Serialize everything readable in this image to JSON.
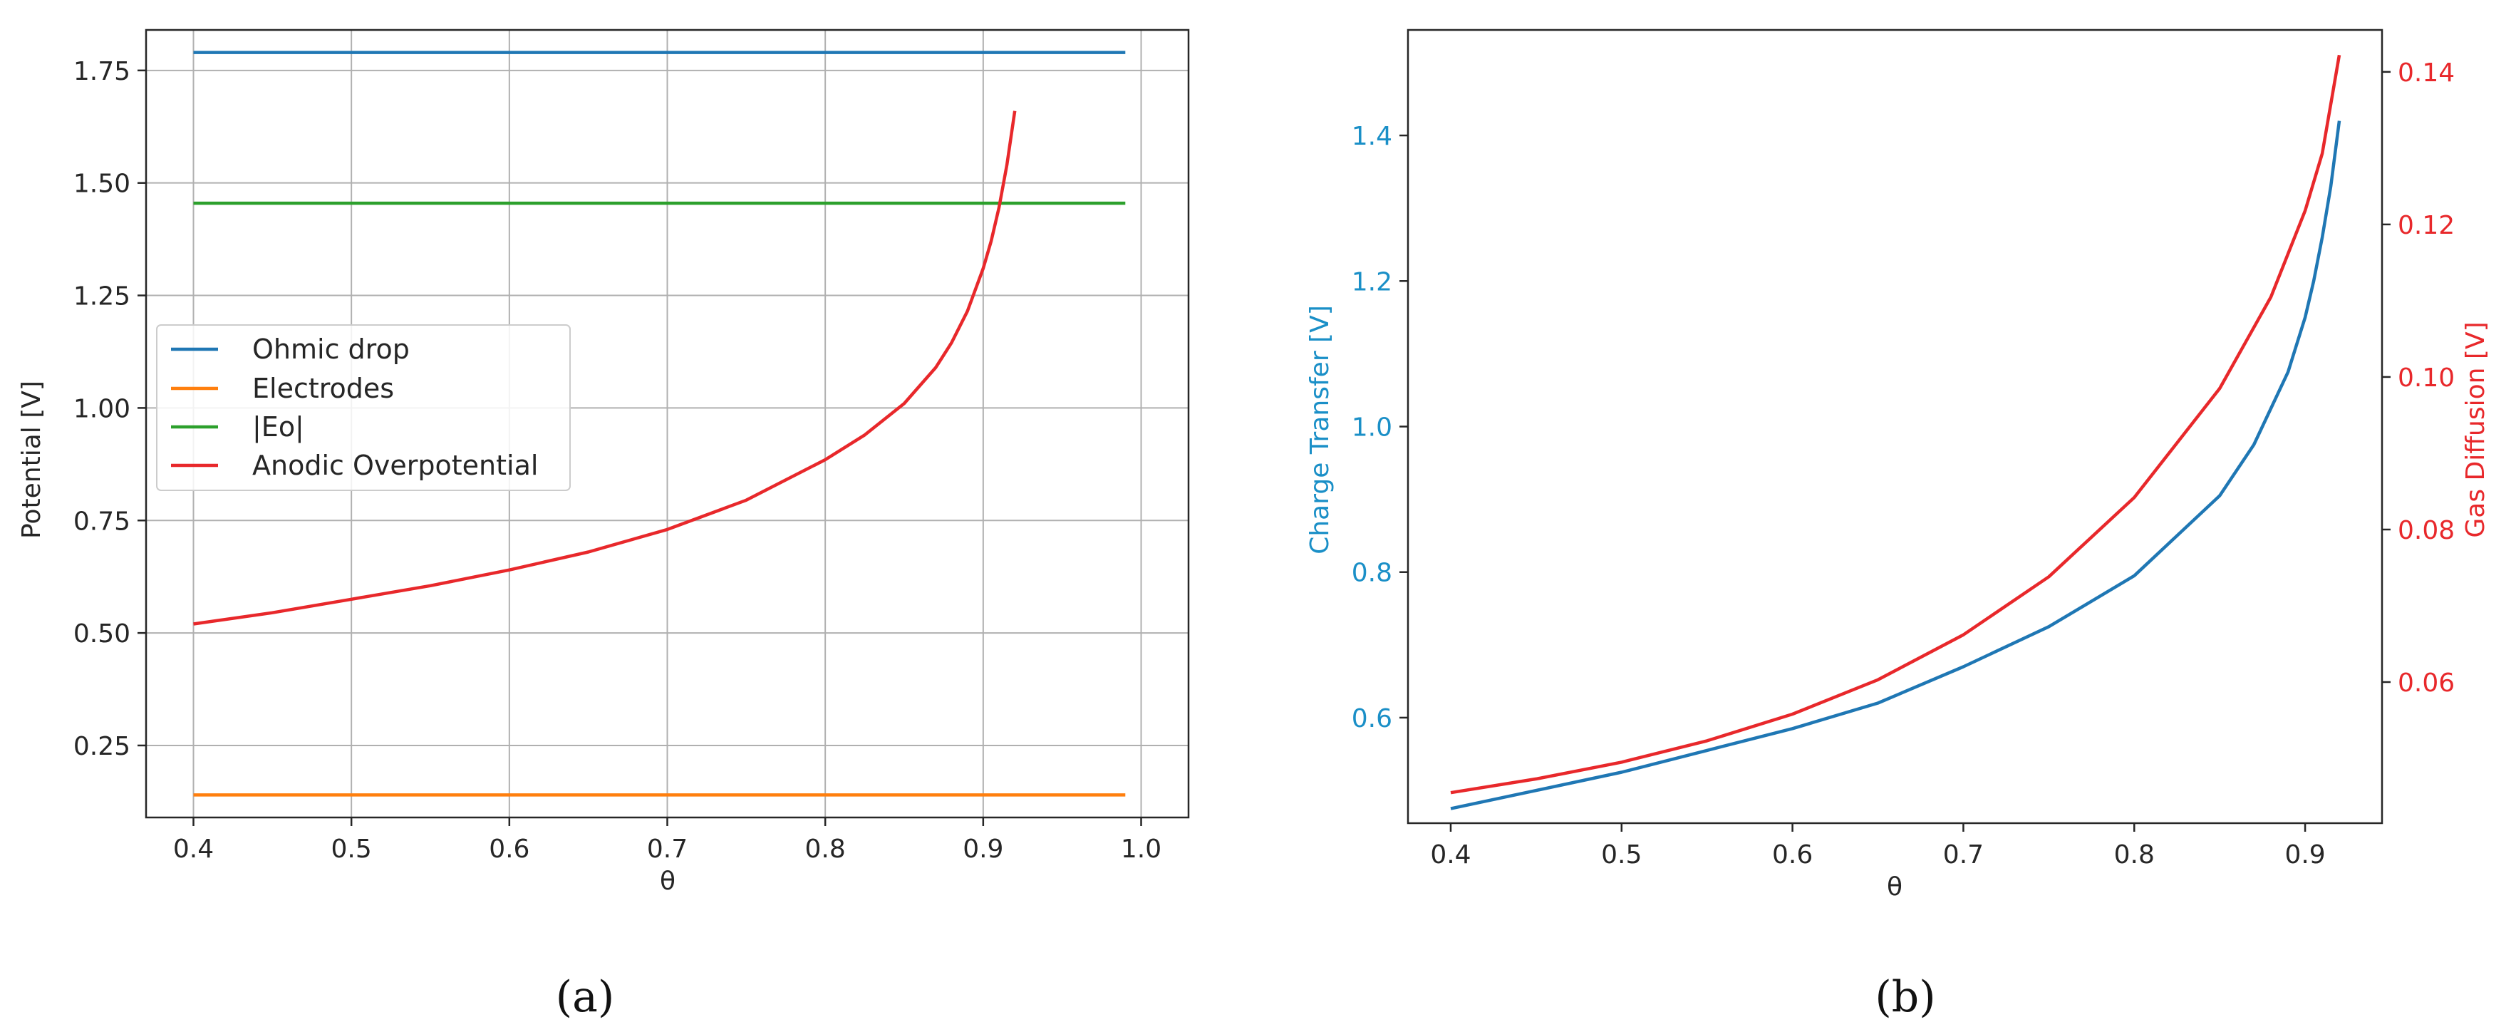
{
  "chart_data": [
    {
      "panel": "a",
      "type": "line",
      "caption": "(a)",
      "xlabel": "θ",
      "ylabel": "Potential [V]",
      "xlim": [
        0.37,
        1.03
      ],
      "ylim": [
        0.09,
        1.84
      ],
      "xticks": [
        "0.4",
        "0.5",
        "0.6",
        "0.7",
        "0.8",
        "0.9",
        "1.0"
      ],
      "yticks": [
        "0.25",
        "0.50",
        "0.75",
        "1.00",
        "1.25",
        "1.50",
        "1.75"
      ],
      "grid": true,
      "legend_position": "center-left",
      "series": [
        {
          "name": "Ohmic drop",
          "color": "#1f77b4",
          "x": [
            0.4,
            0.99
          ],
          "y": [
            1.79,
            1.79
          ]
        },
        {
          "name": "Electrodes",
          "color": "#ff7f0e",
          "x": [
            0.4,
            0.99
          ],
          "y": [
            0.14,
            0.14
          ]
        },
        {
          "name": "|Eo|",
          "color": "#2ca02c",
          "x": [
            0.4,
            0.99
          ],
          "y": [
            1.455,
            1.455
          ]
        },
        {
          "name": "Anodic Overpotential",
          "color": "#e8282b",
          "x": [
            0.4,
            0.45,
            0.5,
            0.55,
            0.6,
            0.65,
            0.7,
            0.75,
            0.8,
            0.825,
            0.85,
            0.87,
            0.88,
            0.89,
            0.9,
            0.905,
            0.91,
            0.915,
            0.92
          ],
          "y": [
            0.52,
            0.545,
            0.575,
            0.605,
            0.64,
            0.68,
            0.73,
            0.795,
            0.885,
            0.94,
            1.01,
            1.09,
            1.145,
            1.215,
            1.31,
            1.37,
            1.445,
            1.54,
            1.66
          ]
        }
      ]
    },
    {
      "panel": "b",
      "type": "line",
      "caption": "(b)",
      "xlabel": "θ",
      "ylabel_left": "Charge Transfer [V]",
      "ylabel_right": "Gas Diffusion [V]",
      "xlim": [
        0.375,
        0.945
      ],
      "ylim_left": [
        0.455,
        1.545
      ],
      "ylim_right": [
        0.0415,
        0.1455
      ],
      "xticks": [
        "0.4",
        "0.5",
        "0.6",
        "0.7",
        "0.8",
        "0.9"
      ],
      "yticks_left": [
        "0.6",
        "0.8",
        "1.0",
        "1.2",
        "1.4"
      ],
      "yticks_right": [
        "0.06",
        "0.08",
        "0.10",
        "0.12",
        "0.14"
      ],
      "grid": false,
      "series": [
        {
          "name": "Charge Transfer",
          "axis": "left",
          "color": "#1f77b4",
          "x": [
            0.4,
            0.45,
            0.5,
            0.55,
            0.6,
            0.65,
            0.7,
            0.75,
            0.8,
            0.85,
            0.87,
            0.89,
            0.9,
            0.905,
            0.91,
            0.915,
            0.92
          ],
          "y": [
            0.475,
            0.5,
            0.525,
            0.555,
            0.585,
            0.62,
            0.67,
            0.725,
            0.795,
            0.905,
            0.975,
            1.075,
            1.15,
            1.2,
            1.26,
            1.33,
            1.42
          ]
        },
        {
          "name": "Gas Diffusion",
          "axis": "right",
          "color": "#e8282b",
          "x": [
            0.4,
            0.45,
            0.5,
            0.55,
            0.6,
            0.65,
            0.7,
            0.75,
            0.8,
            0.85,
            0.88,
            0.9,
            0.91,
            0.92
          ],
          "y": [
            0.0455,
            0.0473,
            0.0495,
            0.0523,
            0.0558,
            0.0603,
            0.0662,
            0.0738,
            0.0842,
            0.0985,
            0.1105,
            0.1218,
            0.1293,
            0.1422
          ]
        }
      ]
    }
  ]
}
